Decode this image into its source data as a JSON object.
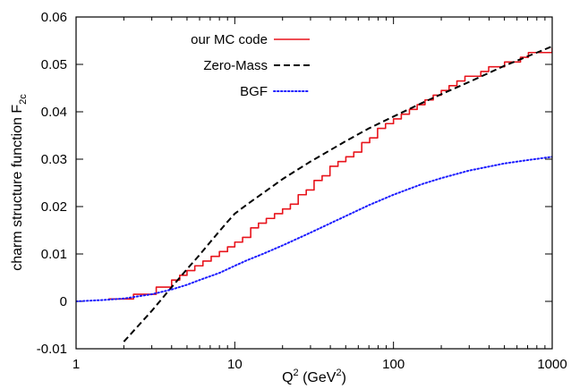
{
  "chart_data": {
    "type": "line",
    "title": "",
    "xlabel": {
      "base": "Q",
      "sup": "2",
      "mid": " (GeV",
      "sup2": "2",
      "tail": ")"
    },
    "ylabel": {
      "text": "charm structure function  F",
      "sub": "2c"
    },
    "xscale": "log",
    "xlim": [
      1,
      1000
    ],
    "ylim": [
      -0.01,
      0.06
    ],
    "grid": false,
    "legend_position": "top-left",
    "x_ticks": [
      1,
      10,
      100,
      1000
    ],
    "x_tick_labels": [
      "1",
      "10",
      "100",
      "1000"
    ],
    "y_ticks": [
      -0.01,
      0,
      0.01,
      0.02,
      0.03,
      0.04,
      0.05,
      0.06
    ],
    "y_tick_labels": [
      "-0.01",
      "0",
      "0.01",
      "0.02",
      "0.03",
      "0.04",
      "0.05",
      "0.06"
    ],
    "series": [
      {
        "name": "our MC code",
        "style": "step",
        "color": "#e8141c",
        "dash": "solid",
        "x": [
          1.6,
          2.3,
          3.2,
          4.0,
          4.5,
          5.0,
          5.6,
          6.3,
          7.1,
          8.0,
          9.0,
          10,
          11.2,
          12.6,
          14.1,
          15.8,
          17.8,
          20,
          22.4,
          25.1,
          28.2,
          31.6,
          35.5,
          39.8,
          44.7,
          50.1,
          56.2,
          63.1,
          70.8,
          79.4,
          89.1,
          100,
          112,
          126,
          141,
          158,
          178,
          200,
          224,
          251,
          282,
          316,
          355,
          398,
          447,
          501,
          562,
          631,
          708,
          794,
          891,
          1000
        ],
        "y": [
          0.0005,
          0.0015,
          0.003,
          0.0045,
          0.0055,
          0.0065,
          0.0075,
          0.0085,
          0.0095,
          0.0105,
          0.0115,
          0.0125,
          0.0135,
          0.0155,
          0.0165,
          0.0175,
          0.0185,
          0.0195,
          0.0205,
          0.0225,
          0.0235,
          0.0255,
          0.0265,
          0.0285,
          0.0295,
          0.0305,
          0.0315,
          0.0335,
          0.0345,
          0.0365,
          0.0375,
          0.0385,
          0.0395,
          0.0405,
          0.0415,
          0.0425,
          0.0435,
          0.0445,
          0.0455,
          0.0465,
          0.0475,
          0.0475,
          0.0485,
          0.0495,
          0.0495,
          0.0505,
          0.0505,
          0.0515,
          0.0525,
          0.0525,
          0.0525,
          0.0535
        ]
      },
      {
        "name": "Zero-Mass",
        "style": "line",
        "color": "#000000",
        "dash": "dashed",
        "x": [
          2,
          3,
          4,
          5,
          6,
          7,
          8,
          9,
          10,
          12,
          15,
          20,
          30,
          50,
          70,
          100,
          150,
          200,
          300,
          500,
          700,
          1000
        ],
        "y": [
          -0.0085,
          -0.002,
          0.003,
          0.0068,
          0.0098,
          0.0125,
          0.0148,
          0.0168,
          0.0185,
          0.0205,
          0.0228,
          0.0258,
          0.0295,
          0.0338,
          0.0365,
          0.039,
          0.0418,
          0.0437,
          0.0463,
          0.0497,
          0.0517,
          0.0538
        ]
      },
      {
        "name": "BGF",
        "style": "line",
        "color": "#1a1aff",
        "dash": "dotted",
        "x": [
          1,
          1.5,
          2,
          3,
          4,
          5,
          6,
          8,
          10,
          12,
          15,
          20,
          30,
          50,
          70,
          100,
          150,
          200,
          300,
          500,
          700,
          1000
        ],
        "y": [
          0.0,
          0.0003,
          0.0006,
          0.0015,
          0.0025,
          0.0035,
          0.0045,
          0.006,
          0.0075,
          0.0087,
          0.01,
          0.0118,
          0.0145,
          0.018,
          0.0203,
          0.0225,
          0.0247,
          0.026,
          0.0276,
          0.0291,
          0.0298,
          0.0305
        ]
      }
    ]
  }
}
